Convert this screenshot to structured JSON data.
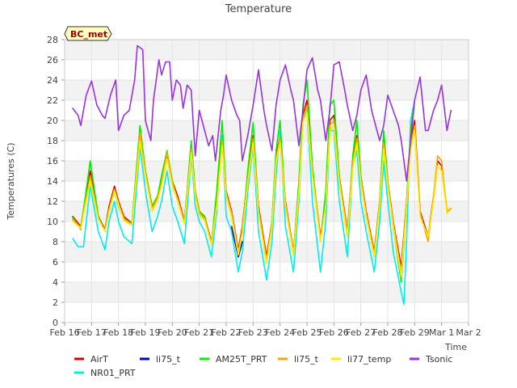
{
  "chart_data": {
    "type": "line",
    "title": "Temperature",
    "xlabel": "Time",
    "ylabel": "Temperatures (C)",
    "station_label": "BC_met",
    "ylim": [
      0,
      28
    ],
    "yticks": [
      0,
      2,
      4,
      6,
      8,
      10,
      12,
      14,
      16,
      18,
      20,
      22,
      24,
      26,
      28
    ],
    "xlim": [
      0,
      15
    ],
    "xticks": [
      {
        "x": 0,
        "label": "Feb 16"
      },
      {
        "x": 1,
        "label": "Feb 17"
      },
      {
        "x": 2,
        "label": "Feb 18"
      },
      {
        "x": 3,
        "label": "Feb 19"
      },
      {
        "x": 4,
        "label": "Feb 20"
      },
      {
        "x": 5,
        "label": "Feb 21"
      },
      {
        "x": 6,
        "label": "Feb 22"
      },
      {
        "x": 7,
        "label": "Feb 23"
      },
      {
        "x": 8,
        "label": "Feb 24"
      },
      {
        "x": 9,
        "label": "Feb 25"
      },
      {
        "x": 10,
        "label": "Feb 26"
      },
      {
        "x": 11,
        "label": "Feb 27"
      },
      {
        "x": 12,
        "label": "Feb 28"
      },
      {
        "x": 13,
        "label": "Feb 29"
      },
      {
        "x": 14,
        "label": "Mar 1"
      },
      {
        "x": 15,
        "label": "Mar 2"
      }
    ],
    "grid": true,
    "legend_position": "bottom",
    "series": [
      {
        "name": "AirT",
        "color": "#dd0000",
        "x": [
          0.3,
          0.6,
          0.95,
          1.25,
          1.5,
          1.65,
          1.85,
          2.0,
          2.2,
          2.5,
          2.8,
          3.0,
          3.25,
          3.45,
          3.6,
          3.8,
          4.0,
          4.2,
          4.45,
          4.7,
          4.85,
          5.0,
          5.2,
          5.45,
          5.65,
          5.85,
          6.0,
          6.2,
          6.45,
          6.6,
          6.8,
          7.0,
          7.2,
          7.5,
          7.7,
          7.85,
          8.0,
          8.2,
          8.5,
          8.7,
          8.85,
          9.0,
          9.2,
          9.5,
          9.7,
          9.85,
          10.0,
          10.2,
          10.5,
          10.7,
          10.85,
          11.0,
          11.2,
          11.5,
          11.7,
          11.85,
          12.0,
          12.2,
          12.5,
          12.7,
          12.85,
          13.0,
          13.2,
          13.5,
          13.7,
          13.85,
          14.0,
          14.2,
          14.35
        ],
        "y": [
          10.5,
          9.5,
          15.0,
          10.5,
          9.2,
          11.5,
          13.5,
          12.0,
          10.5,
          9.8,
          19.0,
          15.0,
          11.5,
          12.5,
          14.0,
          16.5,
          14.0,
          12.5,
          10.0,
          17.5,
          13.0,
          11.0,
          10.5,
          8.0,
          12.0,
          18.5,
          13.0,
          11.0,
          7.2,
          9.5,
          14.5,
          18.5,
          11.5,
          6.5,
          10.0,
          16.5,
          18.5,
          12.0,
          7.0,
          13.5,
          20.5,
          22.0,
          15.0,
          8.5,
          12.0,
          20.0,
          20.5,
          14.5,
          9.0,
          16.0,
          18.5,
          14.5,
          11.0,
          7.0,
          12.0,
          18.0,
          14.0,
          10.0,
          5.5,
          12.0,
          18.0,
          20.0,
          11.0,
          8.5,
          12.5,
          16.0,
          15.5,
          11.0,
          11.3
        ]
      },
      {
        "name": "NR01_PRT",
        "color": "#00eeee",
        "x": [
          0.3,
          0.5,
          0.7,
          0.95,
          1.25,
          1.5,
          1.65,
          1.85,
          2.0,
          2.2,
          2.5,
          2.8,
          3.0,
          3.25,
          3.45,
          3.6,
          3.8,
          4.0,
          4.2,
          4.45,
          4.7,
          4.85,
          5.0,
          5.2,
          5.45,
          5.65,
          5.85,
          6.0,
          6.2,
          6.45,
          6.6,
          6.8,
          7.0,
          7.2,
          7.5,
          7.7,
          7.85,
          8.0,
          8.2,
          8.5,
          8.7,
          8.85,
          9.0,
          9.2,
          9.5,
          9.7,
          9.85,
          10.0,
          10.2,
          10.5,
          10.7,
          10.85,
          11.0,
          11.2,
          11.5,
          11.7,
          11.85,
          12.0,
          12.2,
          12.5,
          12.6,
          12.7,
          12.85,
          13.0
        ],
        "y": [
          8.3,
          7.5,
          7.5,
          13.5,
          9.0,
          7.2,
          10.0,
          12.0,
          10.0,
          8.5,
          7.8,
          17.5,
          13.0,
          9.0,
          10.5,
          12.0,
          15.0,
          11.5,
          10.0,
          7.8,
          16.5,
          11.5,
          10.0,
          9.0,
          6.5,
          11.0,
          18.5,
          10.5,
          9.0,
          5.0,
          7.0,
          13.0,
          17.5,
          9.0,
          4.2,
          8.0,
          14.5,
          19.0,
          9.5,
          5.0,
          12.0,
          20.0,
          21.0,
          12.0,
          5.0,
          10.0,
          19.0,
          19.0,
          12.0,
          6.5,
          15.5,
          17.0,
          12.0,
          9.0,
          5.0,
          10.0,
          16.0,
          12.0,
          7.0,
          3.0,
          1.8,
          8.0,
          20.0,
          22.0
        ]
      },
      {
        "name": "li75_t",
        "color": "#0000cc",
        "x": [
          6.2,
          6.45,
          6.6
        ],
        "y": [
          9.5,
          6.5,
          8.0
        ]
      },
      {
        "name": "AM25T_PRT",
        "color": "#00ee00",
        "x": [
          0.3,
          0.6,
          0.95,
          1.25,
          1.5,
          1.65,
          1.85,
          2.0,
          2.2,
          2.5,
          2.8,
          3.0,
          3.25,
          3.45,
          3.6,
          3.8,
          4.0,
          4.2,
          4.45,
          4.7,
          4.85,
          5.0,
          5.2,
          5.45,
          5.65,
          5.85,
          6.0,
          6.2,
          6.45,
          6.6,
          6.8,
          7.0,
          7.2,
          7.5,
          7.7,
          7.85,
          8.0,
          8.2,
          8.5,
          8.7,
          8.85,
          9.0,
          9.2,
          9.5,
          9.7,
          9.85,
          10.0,
          10.2,
          10.5,
          10.7,
          10.85,
          11.0,
          11.2,
          11.5,
          11.7,
          11.85,
          12.0,
          12.2,
          12.5,
          12.7,
          12.85,
          13.0
        ],
        "y": [
          10.4,
          9.2,
          16.0,
          10.5,
          9.0,
          11.0,
          13.0,
          11.5,
          10.2,
          9.8,
          19.5,
          15.0,
          11.5,
          12.5,
          14.5,
          17.0,
          14.0,
          12.0,
          9.8,
          18.0,
          13.0,
          11.0,
          10.5,
          7.8,
          13.0,
          20.0,
          12.5,
          10.5,
          6.8,
          9.0,
          15.0,
          19.8,
          11.0,
          6.0,
          10.0,
          17.0,
          20.0,
          11.5,
          6.8,
          14.0,
          21.5,
          24.0,
          15.5,
          8.0,
          13.0,
          21.5,
          22.0,
          14.5,
          8.5,
          16.5,
          20.0,
          14.5,
          10.5,
          6.5,
          12.0,
          19.0,
          14.0,
          9.5,
          4.0,
          11.5,
          19.0,
          22.0
        ]
      },
      {
        "name": "li75_t",
        "color": "#ffa500",
        "x": [
          0.3,
          0.6,
          0.95,
          1.25,
          1.5,
          1.65,
          1.85,
          2.0,
          2.2,
          2.5,
          2.8,
          3.0,
          3.25,
          3.45,
          3.6,
          3.8,
          4.0,
          4.2,
          4.45,
          4.7,
          4.85,
          5.0,
          5.2,
          5.45,
          5.65,
          5.85,
          6.0,
          6.2,
          6.45,
          6.6,
          6.8,
          7.0,
          7.2,
          7.5,
          7.7,
          7.85,
          8.0,
          8.2,
          8.5,
          8.7,
          8.85,
          9.0,
          9.2,
          9.5,
          9.7,
          9.85,
          10.0,
          10.2,
          10.5,
          10.7,
          10.85,
          11.0,
          11.2,
          11.5,
          11.7,
          11.85,
          12.0,
          12.2,
          12.5,
          12.7,
          12.85,
          13.0,
          13.2,
          13.5,
          13.7,
          13.85,
          14.0,
          14.2,
          14.35
        ],
        "y": [
          10.2,
          9.4,
          14.5,
          10.3,
          9.1,
          11.2,
          13.2,
          11.8,
          10.3,
          9.7,
          18.8,
          14.8,
          11.3,
          12.3,
          13.8,
          16.8,
          13.8,
          12.2,
          9.9,
          17.2,
          12.8,
          10.8,
          10.3,
          7.9,
          11.8,
          18.0,
          12.8,
          10.8,
          7.0,
          9.2,
          14.2,
          18.2,
          11.2,
          6.2,
          9.8,
          16.2,
          18.2,
          11.8,
          6.9,
          13.2,
          20.2,
          21.5,
          14.8,
          8.3,
          11.8,
          19.5,
          20.0,
          14.2,
          8.8,
          15.8,
          18.2,
          14.2,
          10.8,
          6.8,
          11.8,
          17.8,
          13.8,
          9.8,
          5.0,
          11.8,
          17.5,
          19.5,
          10.8,
          8.0,
          12.5,
          16.5,
          16.0,
          11.0,
          11.3
        ]
      },
      {
        "name": "li77_temp",
        "color": "#ffee00",
        "x": [
          0.3,
          0.6,
          0.95,
          1.25,
          1.5,
          1.65,
          1.85,
          2.0,
          2.2,
          2.5,
          2.8,
          3.0,
          3.25,
          3.45,
          3.6,
          3.8,
          4.0,
          4.2,
          4.45,
          4.7,
          4.85,
          5.0,
          5.2,
          5.45,
          5.65,
          5.85,
          6.0,
          6.2,
          6.45,
          6.6,
          6.8,
          7.0,
          7.2,
          7.5,
          7.7,
          7.85,
          8.0,
          8.2,
          8.5,
          8.7,
          8.85,
          9.0,
          9.2,
          9.5,
          9.7,
          9.85,
          10.0,
          10.2,
          10.5,
          10.7,
          10.85,
          11.0,
          11.2,
          11.5,
          11.7,
          11.85,
          12.0,
          12.2,
          12.5,
          12.7,
          12.85,
          13.0,
          13.2,
          13.5,
          13.7,
          13.85,
          14.0,
          14.2,
          14.35
        ],
        "y": [
          10.0,
          9.3,
          14.0,
          10.2,
          9.0,
          11.0,
          13.0,
          11.6,
          10.1,
          9.6,
          18.0,
          14.5,
          11.0,
          12.0,
          13.5,
          16.2,
          13.5,
          12.0,
          9.7,
          16.8,
          12.5,
          10.6,
          10.1,
          7.7,
          11.5,
          17.5,
          12.5,
          10.5,
          6.7,
          8.8,
          13.8,
          17.8,
          10.8,
          5.8,
          9.5,
          15.8,
          17.8,
          11.5,
          6.6,
          12.8,
          19.8,
          20.8,
          14.5,
          8.0,
          11.5,
          19.0,
          19.5,
          13.8,
          8.5,
          15.2,
          17.8,
          13.8,
          10.5,
          6.5,
          11.5,
          17.2,
          13.5,
          9.5,
          4.5,
          11.5,
          17.0,
          19.0,
          10.5,
          8.5,
          12.0,
          15.5,
          15.0,
          10.8,
          11.2
        ]
      },
      {
        "name": "Tsonic",
        "color": "#9933dd",
        "x": [
          0.3,
          0.5,
          0.6,
          0.8,
          1.0,
          1.2,
          1.4,
          1.5,
          1.7,
          1.9,
          2.0,
          2.2,
          2.4,
          2.6,
          2.7,
          2.9,
          3.0,
          3.2,
          3.3,
          3.5,
          3.6,
          3.75,
          3.9,
          4.0,
          4.15,
          4.3,
          4.4,
          4.55,
          4.7,
          4.85,
          5.0,
          5.2,
          5.35,
          5.5,
          5.6,
          5.8,
          5.9,
          6.0,
          6.2,
          6.4,
          6.5,
          6.6,
          6.8,
          7.0,
          7.2,
          7.4,
          7.5,
          7.7,
          7.85,
          8.0,
          8.2,
          8.4,
          8.5,
          8.7,
          8.85,
          9.0,
          9.2,
          9.4,
          9.5,
          9.7,
          9.85,
          10.0,
          10.2,
          10.4,
          10.5,
          10.7,
          10.85,
          11.0,
          11.2,
          11.4,
          11.5,
          11.7,
          11.85,
          12.0,
          12.2,
          12.4,
          12.5,
          12.7,
          12.85,
          13.0,
          13.2,
          13.4,
          13.5,
          13.7,
          13.85,
          14.0,
          14.2,
          14.35
        ],
        "y": [
          21.2,
          20.5,
          19.5,
          22.5,
          23.9,
          21.5,
          20.5,
          20.2,
          22.5,
          24.0,
          19.0,
          20.5,
          21.0,
          24.0,
          27.4,
          27.0,
          20.0,
          18.0,
          22.0,
          26.0,
          24.5,
          25.8,
          25.8,
          22.0,
          24.0,
          23.5,
          21.2,
          23.5,
          23.0,
          16.5,
          21.0,
          19.0,
          17.5,
          18.5,
          16.0,
          21.0,
          22.5,
          24.5,
          22.0,
          20.5,
          20.0,
          16.0,
          18.5,
          21.5,
          25.0,
          21.0,
          19.5,
          17.0,
          21.5,
          24.0,
          25.5,
          23.0,
          22.0,
          17.5,
          21.0,
          25.0,
          26.2,
          23.0,
          22.0,
          18.0,
          21.0,
          25.5,
          25.8,
          23.0,
          21.5,
          19.0,
          20.5,
          23.0,
          24.5,
          21.0,
          20.0,
          18.0,
          19.5,
          22.5,
          21.0,
          19.5,
          18.0,
          14.0,
          18.0,
          22.0,
          24.3,
          19.0,
          19.0,
          21.0,
          22.0,
          23.5,
          19.0,
          21.0
        ]
      }
    ]
  }
}
